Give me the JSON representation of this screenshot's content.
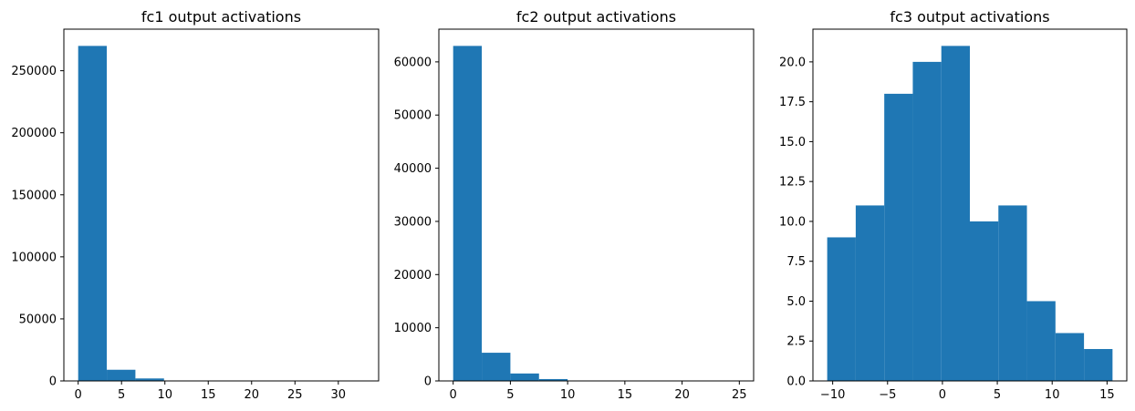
{
  "chart_data": [
    {
      "type": "bar",
      "title": "fc1 output activations",
      "bin_edges": [
        0,
        3.3,
        6.6,
        9.9,
        13.2,
        16.5,
        19.8,
        23.1,
        26.4,
        29.7,
        33.0
      ],
      "values": [
        270000,
        9000,
        2000,
        150,
        50,
        20,
        10,
        5,
        2,
        1
      ],
      "xlim": [
        -1.65,
        34.65
      ],
      "ylim": [
        0,
        283500
      ],
      "xticks": [
        0,
        5,
        10,
        15,
        20,
        25,
        30
      ],
      "xtick_labels": [
        "0",
        "5",
        "10",
        "15",
        "20",
        "25",
        "30"
      ],
      "yticks": [
        0,
        50000,
        100000,
        150000,
        200000,
        250000
      ],
      "ytick_labels": [
        "0",
        "50000",
        "100000",
        "150000",
        "200000",
        "250000"
      ],
      "color": "#1f77b4",
      "grid": false
    },
    {
      "type": "bar",
      "title": "fc2 output activations",
      "bin_edges": [
        0,
        2.5,
        5.0,
        7.5,
        10.0,
        12.5,
        15.0,
        17.5,
        20.0,
        22.5,
        25.0
      ],
      "values": [
        63000,
        5300,
        1400,
        350,
        60,
        20,
        10,
        5,
        2,
        1
      ],
      "xlim": [
        -1.25,
        26.25
      ],
      "ylim": [
        0,
        66150
      ],
      "xticks": [
        0,
        5,
        10,
        15,
        20,
        25
      ],
      "xtick_labels": [
        "0",
        "5",
        "10",
        "15",
        "20",
        "25"
      ],
      "yticks": [
        0,
        10000,
        20000,
        30000,
        40000,
        50000,
        60000
      ],
      "ytick_labels": [
        "0",
        "10000",
        "20000",
        "30000",
        "40000",
        "50000",
        "60000"
      ],
      "color": "#1f77b4",
      "grid": false
    },
    {
      "type": "bar",
      "title": "fc3 output activations",
      "bin_edges": [
        -10.5,
        -7.9,
        -5.3,
        -2.7,
        -0.1,
        2.5,
        5.1,
        7.7,
        10.3,
        12.9,
        15.5
      ],
      "values": [
        9,
        11,
        18,
        20,
        21,
        10,
        11,
        5,
        3,
        2
      ],
      "xlim": [
        -11.8,
        16.8
      ],
      "ylim": [
        0,
        22.05
      ],
      "xticks": [
        -10,
        -5,
        0,
        5,
        10,
        15
      ],
      "xtick_labels": [
        "−10",
        "−5",
        "0",
        "5",
        "10",
        "15"
      ],
      "yticks": [
        0,
        2.5,
        5,
        7.5,
        10,
        12.5,
        15,
        17.5,
        20
      ],
      "ytick_labels": [
        "0.0",
        "2.5",
        "5.0",
        "7.5",
        "10.0",
        "12.5",
        "15.0",
        "17.5",
        "20.0"
      ],
      "color": "#1f77b4",
      "grid": false
    }
  ]
}
